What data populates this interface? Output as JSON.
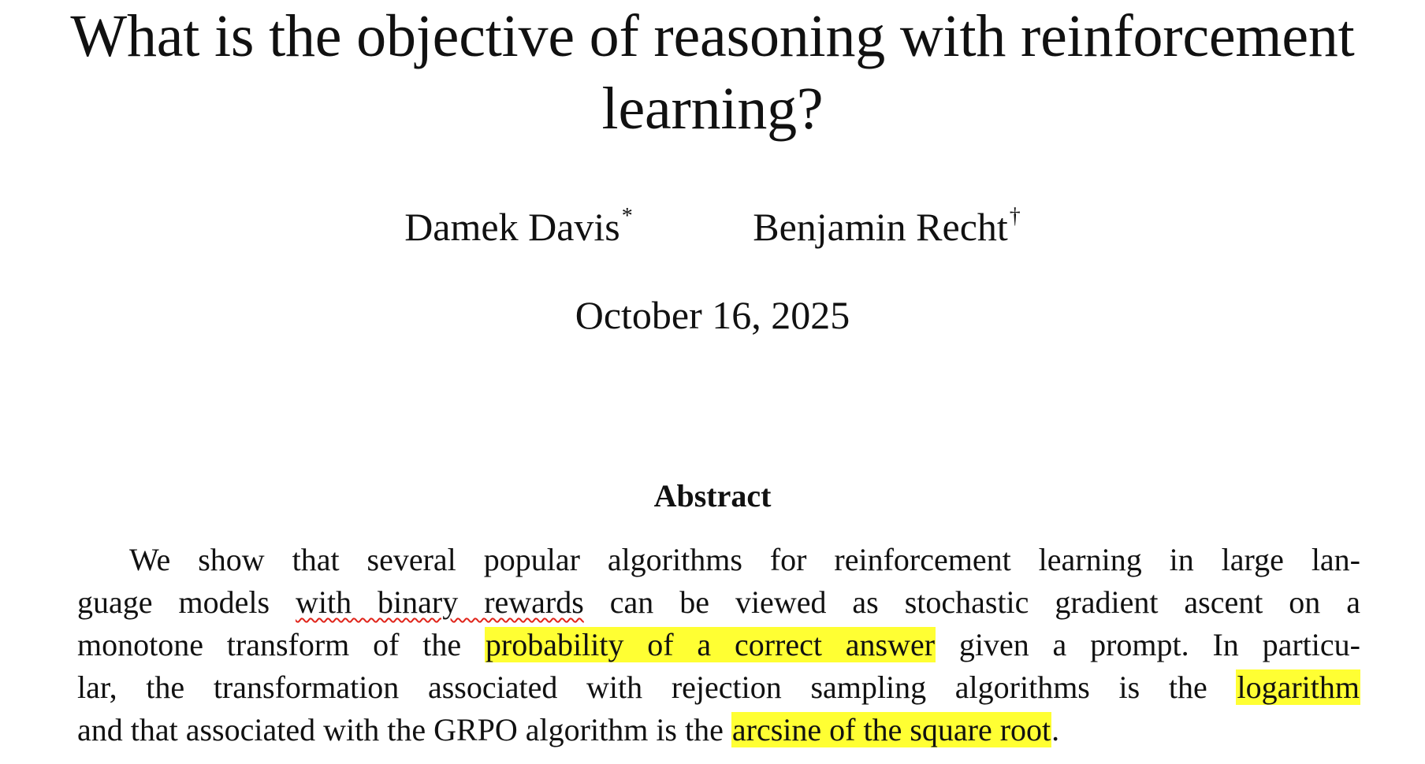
{
  "paper": {
    "title_line1": "What is the objective of reasoning with reinforcement",
    "title_line2": "learning?",
    "authors": [
      {
        "name": "Damek Davis",
        "mark": "*"
      },
      {
        "name": "Benjamin Recht",
        "mark": "†"
      }
    ],
    "date": "October 16, 2025"
  },
  "abstract": {
    "heading": "Abstract",
    "line1": {
      "text": "We show that several popular algorithms for reinforcement learning in large lan-"
    },
    "line2": {
      "pre": "guage models ",
      "squiggle": "with binary rewards",
      "post": " can be viewed as stochastic gradient ascent on a"
    },
    "line3": {
      "pre": "monotone transform of the ",
      "highlight": "probability of a correct answer",
      "post": " given a prompt. In particu-"
    },
    "line4": {
      "pre": "lar, the transformation associated with rejection sampling algorithms is the ",
      "highlight": "logarithm"
    },
    "line5": {
      "pre": "and that associated with the GRPO algorithm is the ",
      "highlight": "arcsine of the square root",
      "post": "."
    }
  },
  "colors": {
    "highlight": "#ffff33",
    "spellcheck_underline": "#e0241a"
  }
}
